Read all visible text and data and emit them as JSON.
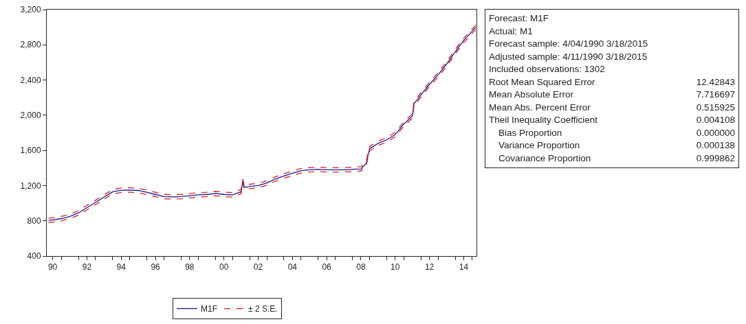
{
  "chart_data": {
    "type": "line",
    "x": [
      "1990-04-04",
      "1991-01-01",
      "1991-07-01",
      "1992-01-01",
      "1992-07-01",
      "1993-01-01",
      "1993-07-01",
      "1994-01-01",
      "1994-07-01",
      "1995-01-01",
      "1995-07-01",
      "1996-01-01",
      "1996-07-01",
      "1997-01-01",
      "1997-07-01",
      "1998-01-01",
      "1998-07-01",
      "1999-01-01",
      "1999-07-01",
      "2000-01-01",
      "2000-07-01",
      "2001-01-01",
      "2001-07-01",
      "2001-08-07",
      "2001-09-12",
      "2002-01-01",
      "2002-07-01",
      "2003-01-01",
      "2003-07-01",
      "2004-01-01",
      "2004-07-01",
      "2005-01-01",
      "2005-07-01",
      "2006-01-01",
      "2006-07-01",
      "2007-01-01",
      "2007-07-01",
      "2008-01-01",
      "2008-07-01",
      "2008-10-19",
      "2009-01-01",
      "2009-07-01",
      "2010-01-01",
      "2010-07-01",
      "2011-01-01",
      "2011-07-01",
      "2011-08-07",
      "2012-01-01",
      "2012-07-01",
      "2013-01-01",
      "2013-07-01",
      "2014-01-01",
      "2014-07-01",
      "2015-03-18"
    ],
    "series": [
      {
        "name": "M1F",
        "color": "#1a1a8c",
        "line_style": "solid",
        "values": [
          805,
          825,
          850,
          890,
          950,
          1010,
          1070,
          1130,
          1148,
          1150,
          1145,
          1125,
          1100,
          1075,
          1072,
          1075,
          1085,
          1095,
          1100,
          1110,
          1100,
          1095,
          1130,
          1250,
          1180,
          1190,
          1200,
          1230,
          1275,
          1310,
          1340,
          1370,
          1380,
          1385,
          1380,
          1380,
          1380,
          1385,
          1390,
          1450,
          1620,
          1680,
          1720,
          1780,
          1900,
          1990,
          2130,
          2230,
          2350,
          2460,
          2580,
          2720,
          2850,
          3000
        ]
      },
      {
        "name": "± 2 S.E.",
        "color": "#e0141e",
        "line_style": "dashed",
        "values": [
          830,
          850,
          875,
          915,
          975,
          1035,
          1095,
          1155,
          1173,
          1175,
          1170,
          1150,
          1125,
          1100,
          1097,
          1100,
          1110,
          1120,
          1125,
          1135,
          1125,
          1120,
          1155,
          1275,
          1205,
          1215,
          1225,
          1255,
          1300,
          1335,
          1365,
          1395,
          1405,
          1410,
          1405,
          1405,
          1405,
          1410,
          1415,
          1475,
          1645,
          1705,
          1745,
          1805,
          1925,
          2015,
          2155,
          2255,
          2375,
          2485,
          2605,
          2745,
          2875,
          3025
        ]
      },
      {
        "color": "#e0141e",
        "line_style": "dashed",
        "values": [
          780,
          800,
          825,
          865,
          925,
          985,
          1045,
          1105,
          1123,
          1125,
          1120,
          1100,
          1075,
          1050,
          1047,
          1050,
          1060,
          1070,
          1075,
          1085,
          1075,
          1070,
          1105,
          1225,
          1155,
          1165,
          1175,
          1205,
          1250,
          1285,
          1315,
          1345,
          1355,
          1360,
          1355,
          1355,
          1355,
          1360,
          1365,
          1425,
          1595,
          1655,
          1695,
          1755,
          1875,
          1965,
          2105,
          2205,
          2325,
          2435,
          2555,
          2695,
          2825,
          2975
        ]
      }
    ],
    "xlim": [
      "1990-02-25",
      "2015-03-31"
    ],
    "xticks": [
      {
        "value": "1990-07-01",
        "label": "90"
      },
      {
        "value": "1992-07-01",
        "label": "92"
      },
      {
        "value": "1994-07-01",
        "label": "94"
      },
      {
        "value": "1996-07-01",
        "label": "96"
      },
      {
        "value": "1998-07-01",
        "label": "98"
      },
      {
        "value": "2000-07-01",
        "label": "00"
      },
      {
        "value": "2002-07-01",
        "label": "02"
      },
      {
        "value": "2004-07-01",
        "label": "04"
      },
      {
        "value": "2006-07-01",
        "label": "06"
      },
      {
        "value": "2008-07-01",
        "label": "08"
      },
      {
        "value": "2010-07-01",
        "label": "10"
      },
      {
        "value": "2012-07-01",
        "label": "12"
      },
      {
        "value": "2014-07-01",
        "label": "14"
      },
      {
        "value": "1991-01-01",
        "label": null
      },
      {
        "value": "1992-01-01",
        "label": null
      },
      {
        "value": "1993-01-01",
        "label": null
      },
      {
        "value": "1994-01-01",
        "label": null
      },
      {
        "value": "1995-01-01",
        "label": null
      },
      {
        "value": "1996-01-01",
        "label": null
      },
      {
        "value": "1997-01-01",
        "label": null
      },
      {
        "value": "1998-01-01",
        "label": null
      },
      {
        "value": "1999-01-01",
        "label": null
      },
      {
        "value": "2000-01-01",
        "label": null
      },
      {
        "value": "2001-01-01",
        "label": null
      },
      {
        "value": "2002-01-01",
        "label": null
      },
      {
        "value": "2003-01-01",
        "label": null
      },
      {
        "value": "2004-01-01",
        "label": null
      },
      {
        "value": "2005-01-01",
        "label": null
      },
      {
        "value": "2006-01-01",
        "label": null
      },
      {
        "value": "2007-01-01",
        "label": null
      },
      {
        "value": "2008-01-01",
        "label": null
      },
      {
        "value": "2009-01-01",
        "label": null
      },
      {
        "value": "2010-01-01",
        "label": null
      },
      {
        "value": "2011-01-01",
        "label": null
      },
      {
        "value": "2012-01-01",
        "label": null
      },
      {
        "value": "2013-01-01",
        "label": null
      },
      {
        "value": "2014-01-01",
        "label": null
      },
      {
        "value": "2015-01-01",
        "label": null
      }
    ],
    "ylim": [
      400,
      3200
    ],
    "yticks": [
      400,
      800,
      {
        "value": 1200,
        "label": "1,200"
      },
      {
        "value": 1600,
        "label": "1,600"
      },
      {
        "value": 2000,
        "label": "2,000"
      },
      {
        "value": 2400,
        "label": "2,400"
      },
      {
        "value": 2800,
        "label": "2,800"
      },
      {
        "value": 3200,
        "label": "3,200"
      }
    ],
    "grid": false,
    "legend": "bottom",
    "marker": "none",
    "annotations": [
      "Forecast: M1F",
      "Actual: M1",
      "Forecast sample: 4/04/1990 3/18/2015",
      "Adjusted sample: 4/11/1990 3/18/2015",
      "Included observations: 1302",
      "Root Mean Squared Error",
      "12.42843",
      "Mean Absolute Error",
      "7.716697",
      "Mean Abs. Percent Error",
      "0.515925",
      "Theil Inequality Coefficient",
      "0.004108",
      "Bias Proportion",
      "0.000000",
      "Variance Proportion",
      "0.000138",
      "Covariance Proportion",
      "0.999862"
    ]
  }
}
